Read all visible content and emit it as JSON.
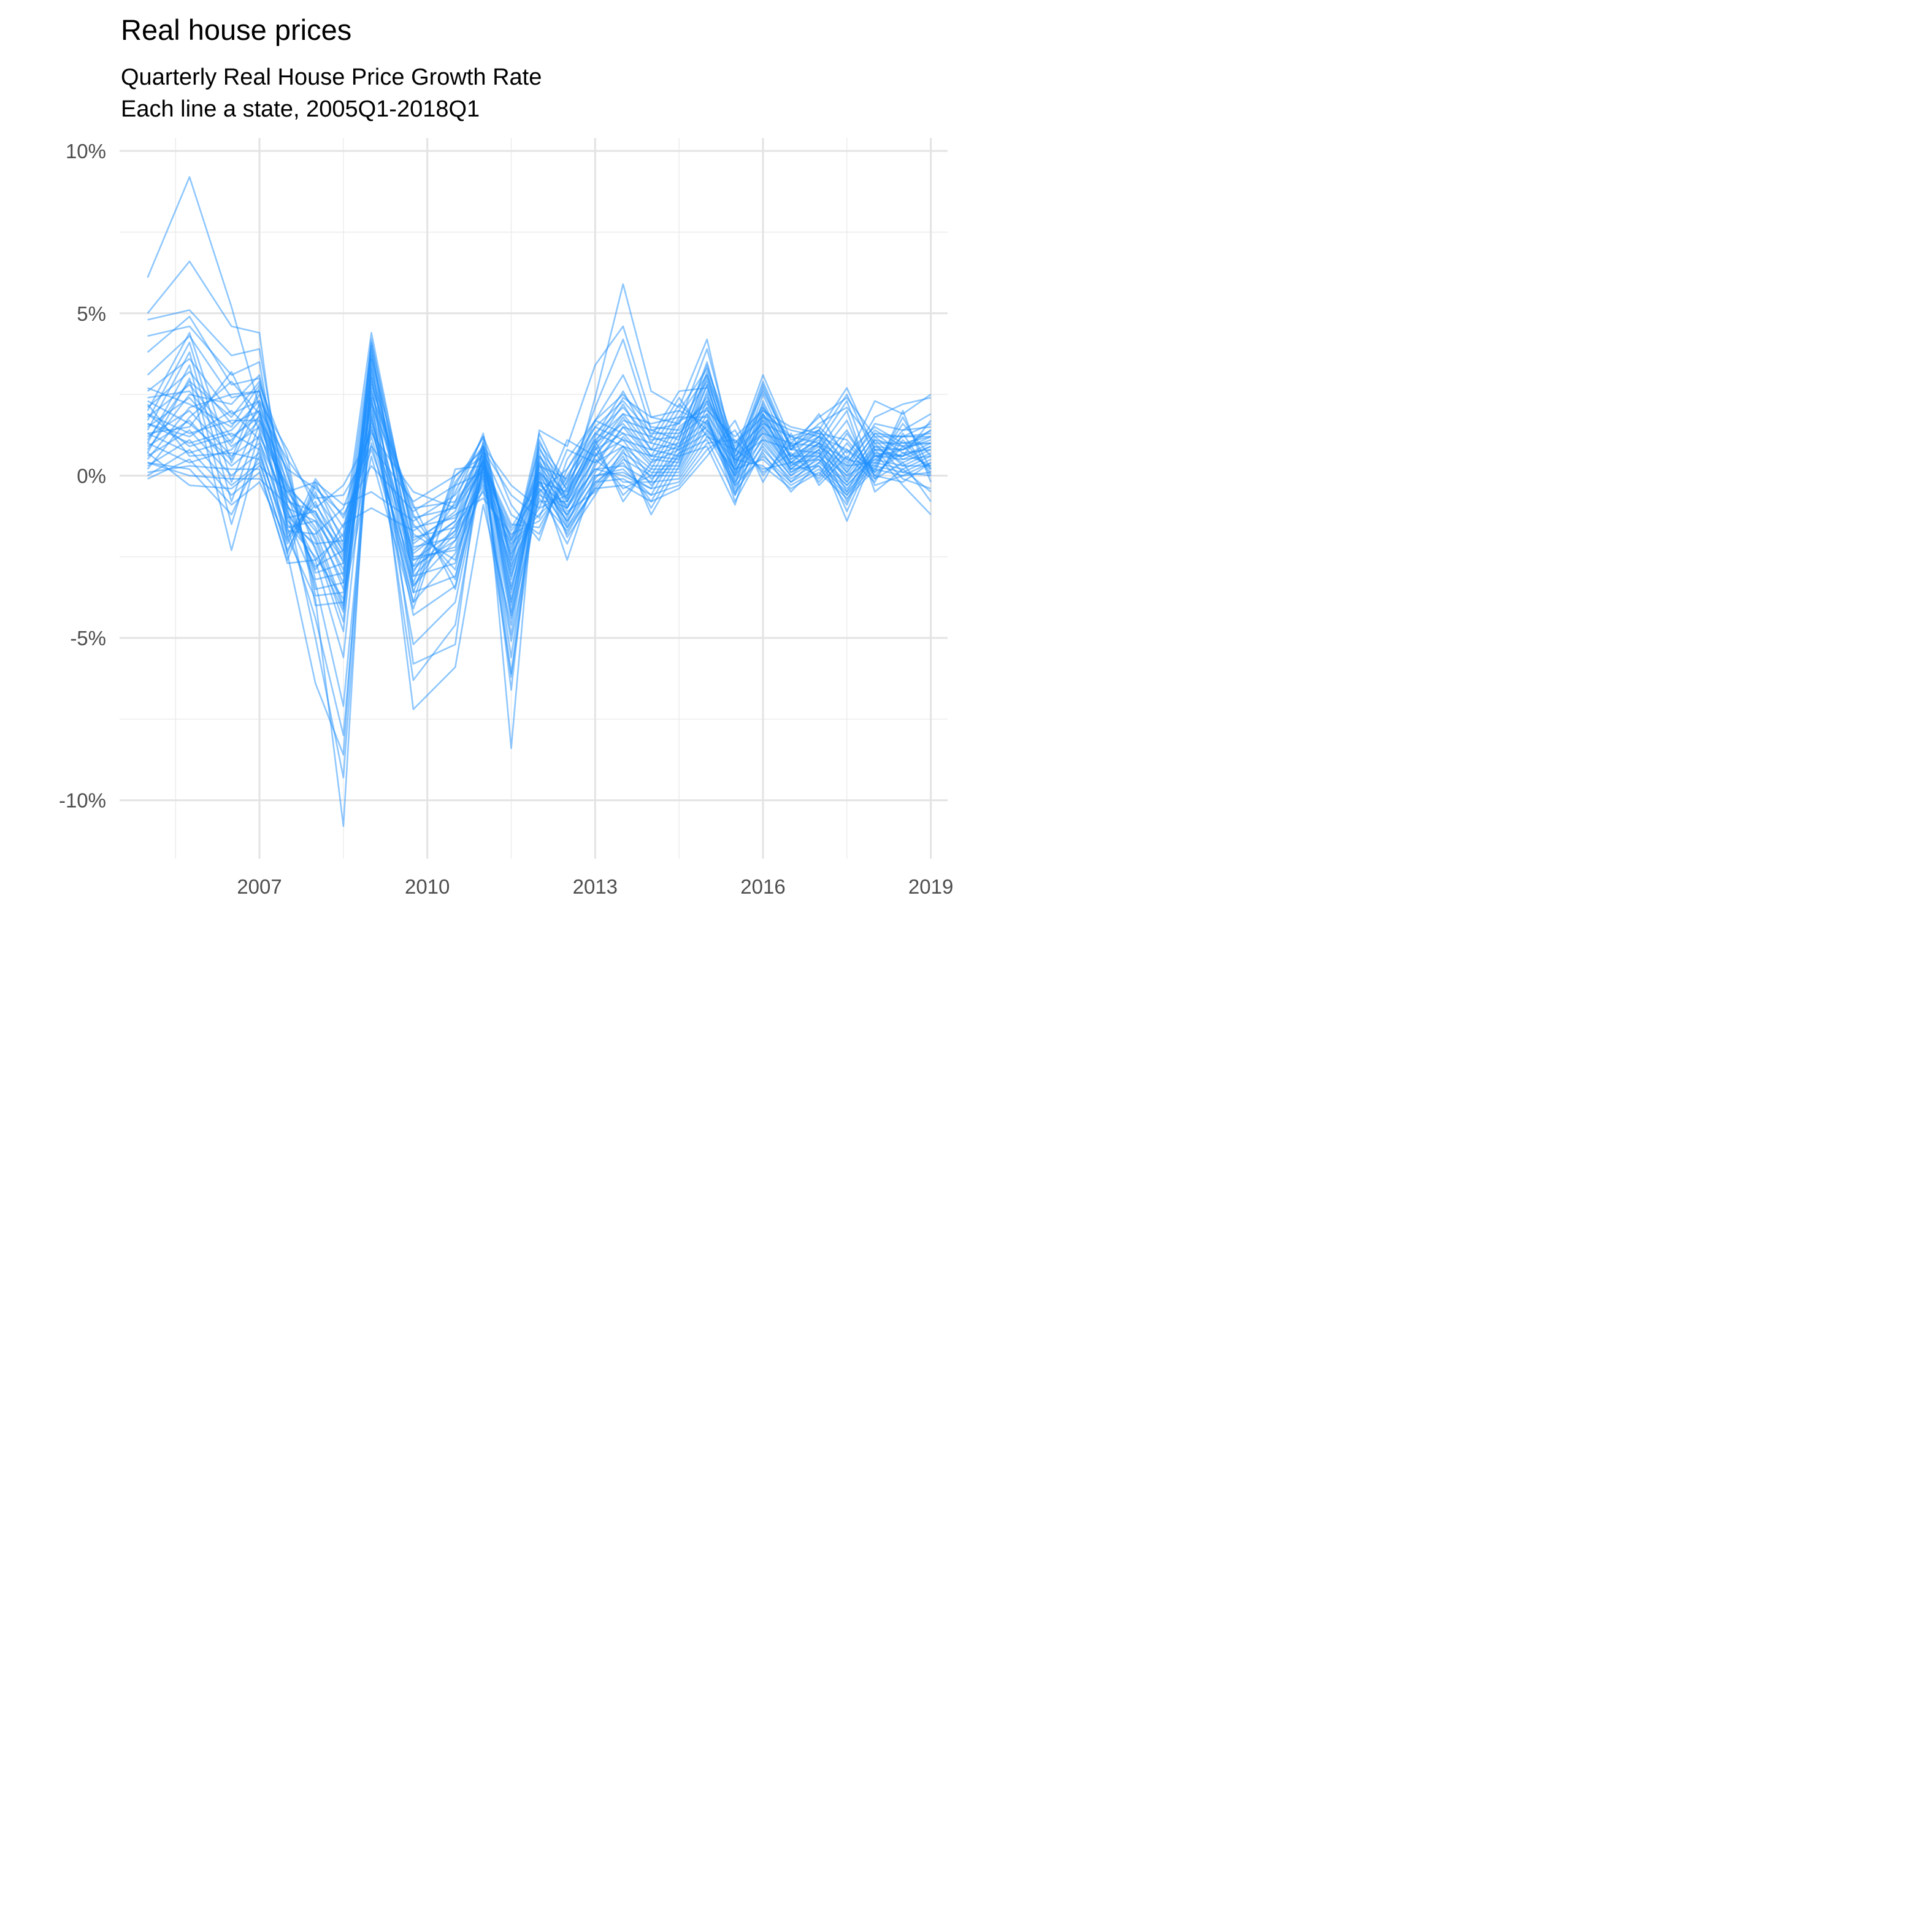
{
  "chart_data": {
    "type": "line",
    "title": "Real house prices",
    "subtitle_lines": [
      "Quarterly Real House Price Growth Rate",
      "Each line a state, 2005Q1-2018Q1"
    ],
    "xlabel": "",
    "ylabel": "",
    "x_ticks": [
      {
        "value": 2007,
        "label": "2007"
      },
      {
        "value": 2010,
        "label": "2010"
      },
      {
        "value": 2013,
        "label": "2013"
      },
      {
        "value": 2016,
        "label": "2016"
      },
      {
        "value": 2019,
        "label": "2019"
      }
    ],
    "y_ticks": [
      {
        "value": 10,
        "label": "10%"
      },
      {
        "value": 5,
        "label": "5%"
      },
      {
        "value": 0,
        "label": "0%"
      },
      {
        "value": -5,
        "label": "-5%"
      },
      {
        "value": -10,
        "label": "-10%"
      }
    ],
    "xlim": [
      2004.5,
      2019.3
    ],
    "ylim": [
      -11.8,
      10.4
    ],
    "grid": true,
    "legend": "none",
    "line_color": "#1e90ff",
    "line_opacity": 0.5,
    "x": [
      2005,
      2005.75,
      2006.5,
      2007,
      2007.5,
      2008,
      2008.5,
      2009,
      2009.75,
      2010.5,
      2011,
      2011.5,
      2012,
      2012.5,
      2013,
      2013.5,
      2014,
      2014.5,
      2015,
      2015.5,
      2016,
      2016.5,
      2017,
      2017.5,
      2018,
      2018.5,
      2019
    ],
    "series": [
      {
        "values": [
          6.1,
          9.2,
          5.2,
          2.1,
          -2.4,
          -6.4,
          -8.6,
          3.2,
          -7.2,
          -5.9,
          -0.9,
          -4.6,
          0.6,
          -0.7,
          2.4,
          5.9,
          2.6,
          2.1,
          4.2,
          0.4,
          2.8,
          0.8,
          1.9,
          0.5,
          2.3,
          1.9,
          2.5
        ]
      },
      {
        "values": [
          5.0,
          6.6,
          4.6,
          4.4,
          -1.9,
          -3.8,
          -10.8,
          3.6,
          -5.8,
          -5.2,
          1.1,
          -8.4,
          1.4,
          0.9,
          3.4,
          4.6,
          1.8,
          1.6,
          3.9,
          0.7,
          2.6,
          0.9,
          1.4,
          0.3,
          1.8,
          2.2,
          2.4
        ]
      },
      {
        "values": [
          4.8,
          5.1,
          3.7,
          3.9,
          -1.0,
          -5.0,
          -9.3,
          2.4,
          -6.3,
          -4.6,
          0.4,
          -6.6,
          1.0,
          -0.2,
          2.1,
          4.2,
          1.4,
          1.1,
          3.5,
          0.3,
          2.2,
          0.5,
          1.2,
          0.2,
          1.6,
          1.4,
          1.9
        ]
      },
      {
        "values": [
          4.3,
          4.6,
          3.1,
          3.5,
          -1.6,
          -4.4,
          -8.0,
          1.9,
          -5.2,
          -3.9,
          0.3,
          -6.1,
          0.6,
          -0.4,
          1.7,
          3.1,
          1.2,
          0.9,
          3.1,
          0.1,
          1.8,
          0.4,
          1.0,
          0.1,
          1.3,
          1.2,
          1.6
        ]
      },
      {
        "values": [
          3.8,
          4.9,
          2.8,
          3.0,
          -1.3,
          -3.3,
          -7.1,
          2.0,
          -4.3,
          -3.4,
          0.2,
          -5.6,
          0.4,
          -0.6,
          1.2,
          2.6,
          1.0,
          0.8,
          2.8,
          0.0,
          1.6,
          0.3,
          0.9,
          0.0,
          1.1,
          0.9,
          1.4
        ]
      },
      {
        "values": [
          3.1,
          4.3,
          2.4,
          2.6,
          -0.9,
          -2.6,
          -5.6,
          2.7,
          -3.6,
          -3.1,
          0.0,
          -4.9,
          0.3,
          -0.8,
          0.9,
          2.2,
          0.8,
          0.6,
          2.5,
          -0.2,
          1.4,
          0.2,
          0.8,
          -0.1,
          0.9,
          0.8,
          1.2
        ]
      },
      {
        "values": [
          2.6,
          3.6,
          1.9,
          2.3,
          -1.2,
          -2.2,
          -4.8,
          3.9,
          -3.1,
          -2.7,
          0.3,
          -4.2,
          0.1,
          -1.0,
          0.6,
          1.8,
          0.6,
          0.5,
          2.3,
          -0.4,
          1.2,
          0.1,
          0.6,
          -0.2,
          0.8,
          0.6,
          1.0
        ]
      },
      {
        "values": [
          2.1,
          3.2,
          1.6,
          2.0,
          -0.7,
          -1.9,
          -4.1,
          4.2,
          -2.6,
          -2.2,
          0.6,
          -3.8,
          0.0,
          -1.2,
          0.3,
          1.5,
          0.5,
          0.4,
          2.1,
          -0.6,
          1.0,
          0.0,
          0.5,
          -0.3,
          0.6,
          0.5,
          0.9
        ]
      },
      {
        "values": [
          1.8,
          2.8,
          1.2,
          1.8,
          -1.5,
          -2.5,
          -3.8,
          3.4,
          -2.2,
          -1.9,
          0.8,
          -3.4,
          -0.2,
          -1.4,
          0.1,
          1.2,
          0.3,
          0.3,
          1.9,
          -0.8,
          0.8,
          -0.1,
          0.4,
          -0.4,
          0.5,
          0.3,
          0.7
        ]
      },
      {
        "values": [
          1.5,
          2.4,
          0.9,
          1.5,
          -0.5,
          -1.6,
          -3.3,
          3.8,
          -1.9,
          -1.6,
          0.5,
          -3.0,
          -0.4,
          -1.6,
          -0.1,
          0.9,
          0.2,
          0.2,
          1.7,
          -0.3,
          0.6,
          -0.2,
          0.3,
          -0.5,
          0.4,
          0.2,
          0.6
        ]
      },
      {
        "values": [
          1.2,
          2.0,
          0.6,
          1.2,
          -0.3,
          -1.3,
          -2.9,
          2.9,
          -1.6,
          -1.3,
          0.9,
          -2.6,
          -0.1,
          -1.8,
          -0.3,
          0.7,
          0.1,
          0.1,
          1.6,
          0.2,
          0.5,
          -0.3,
          0.2,
          -0.6,
          0.3,
          0.1,
          0.5
        ]
      },
      {
        "values": [
          0.9,
          1.7,
          0.3,
          1.0,
          -0.8,
          -1.1,
          -2.5,
          3.1,
          -1.3,
          -1.0,
          0.2,
          -2.3,
          0.2,
          -1.1,
          -0.5,
          0.5,
          0.0,
          0.0,
          1.4,
          0.5,
          0.3,
          -0.4,
          0.1,
          -0.7,
          0.2,
          0.0,
          0.4
        ]
      },
      {
        "values": [
          0.6,
          1.4,
          0.0,
          0.7,
          -1.9,
          -0.9,
          -2.2,
          2.2,
          -1.0,
          -0.8,
          0.4,
          -2.0,
          -0.3,
          -0.9,
          0.2,
          0.3,
          -0.2,
          -0.1,
          1.2,
          0.8,
          0.2,
          0.4,
          0.0,
          1.3,
          0.1,
          0.7,
          0.3
        ]
      },
      {
        "values": [
          0.3,
          1.1,
          -0.3,
          0.4,
          -2.3,
          -0.6,
          -1.9,
          1.6,
          -3.9,
          -2.4,
          -0.4,
          -6.2,
          0.0,
          -2.6,
          0.0,
          0.1,
          -0.4,
          -0.2,
          1.0,
          1.1,
          0.1,
          0.7,
          -0.1,
          1.0,
          0.0,
          0.9,
          0.2
        ]
      },
      {
        "values": [
          0.0,
          0.8,
          -0.6,
          0.1,
          -2.6,
          -0.3,
          -1.6,
          1.2,
          -3.4,
          -2.0,
          -0.2,
          -5.1,
          -0.5,
          -2.1,
          -0.2,
          -0.1,
          -0.6,
          -0.3,
          0.8,
          1.4,
          0.0,
          1.0,
          -0.2,
          0.8,
          -0.1,
          1.1,
          0.1
        ]
      },
      {
        "values": [
          -0.1,
          0.5,
          -0.9,
          -0.2,
          -2.0,
          -0.1,
          -1.3,
          0.8,
          -2.9,
          -1.7,
          0.0,
          -4.4,
          -0.7,
          -1.7,
          -0.4,
          -0.3,
          -0.8,
          -0.4,
          0.6,
          1.7,
          -0.2,
          1.3,
          -0.3,
          0.6,
          -0.2,
          1.3,
          0.0
        ]
      },
      {
        "values": [
          0.4,
          0.2,
          -1.2,
          0.6,
          -1.7,
          -1.8,
          -1.0,
          1.4,
          -2.4,
          -1.4,
          0.7,
          -3.6,
          0.5,
          -1.5,
          0.4,
          0.9,
          -0.3,
          0.6,
          0.9,
          -0.9,
          1.9,
          0.1,
          0.7,
          -1.4,
          0.7,
          -0.3,
          -1.2
        ]
      },
      {
        "values": [
          0.7,
          3.0,
          -2.3,
          0.9,
          -1.4,
          -2.1,
          -2.0,
          2.6,
          -2.1,
          -1.1,
          1.0,
          -3.2,
          0.7,
          -1.3,
          0.6,
          1.1,
          -0.1,
          0.7,
          1.1,
          -0.6,
          2.1,
          0.3,
          0.8,
          -1.1,
          0.8,
          -0.1,
          -0.4
        ]
      },
      {
        "values": [
          1.0,
          3.4,
          -1.5,
          1.3,
          -1.1,
          -2.8,
          -2.3,
          2.4,
          -2.8,
          -0.8,
          1.3,
          -2.9,
          0.9,
          -1.0,
          0.8,
          1.3,
          0.4,
          0.8,
          1.3,
          -0.3,
          2.3,
          0.5,
          1.0,
          -0.8,
          1.0,
          0.1,
          0.0
        ]
      },
      {
        "values": [
          1.4,
          3.8,
          -0.8,
          1.6,
          -0.6,
          -3.0,
          -2.7,
          2.1,
          -3.0,
          -0.5,
          1.2,
          -2.7,
          1.1,
          -0.8,
          1.0,
          1.6,
          0.6,
          0.9,
          1.5,
          0.0,
          2.5,
          0.6,
          1.1,
          -0.5,
          1.1,
          0.3,
          0.3
        ]
      },
      {
        "values": [
          1.7,
          4.1,
          -0.2,
          1.9,
          -0.2,
          -3.2,
          -3.0,
          1.8,
          -3.3,
          -0.2,
          0.9,
          -2.5,
          1.3,
          -0.5,
          1.1,
          1.9,
          0.8,
          1.0,
          1.7,
          0.2,
          2.7,
          0.8,
          1.2,
          -0.2,
          1.2,
          0.5,
          0.6
        ]
      },
      {
        "values": [
          2.0,
          4.4,
          0.4,
          2.2,
          0.1,
          -3.5,
          -3.3,
          1.5,
          -3.6,
          0.0,
          0.6,
          -2.2,
          0.8,
          -0.3,
          1.3,
          2.1,
          1.1,
          1.2,
          1.9,
          0.5,
          2.9,
          0.9,
          1.3,
          0.1,
          1.3,
          0.7,
          0.8
        ]
      },
      {
        "values": [
          2.4,
          2.6,
          1.0,
          2.5,
          0.3,
          -3.7,
          -3.6,
          1.0,
          -3.9,
          0.2,
          0.3,
          -2.0,
          0.3,
          -0.1,
          1.5,
          2.3,
          1.3,
          1.3,
          2.1,
          0.7,
          3.1,
          1.1,
          1.4,
          0.4,
          1.4,
          0.9,
          1.0
        ]
      },
      {
        "values": [
          2.7,
          2.2,
          1.5,
          2.8,
          0.6,
          -4.0,
          -3.9,
          0.6,
          -4.1,
          -0.3,
          0.1,
          -1.7,
          -0.5,
          0.2,
          1.7,
          2.5,
          1.5,
          1.4,
          2.3,
          0.9,
          2.0,
          1.2,
          1.5,
          0.7,
          1.5,
          1.0,
          1.2
        ]
      },
      {
        "values": [
          1.1,
          2.9,
          1.8,
          2.9,
          0.0,
          -2.3,
          -4.2,
          4.1,
          -1.8,
          -2.6,
          0.5,
          -4.0,
          0.4,
          -1.9,
          -0.6,
          0.8,
          -1.2,
          0.3,
          2.6,
          -0.1,
          1.5,
          0.2,
          0.3,
          -0.9,
          0.9,
          0.4,
          0.8
        ]
      },
      {
        "values": [
          0.8,
          2.5,
          2.2,
          3.1,
          -0.4,
          -2.0,
          -4.5,
          3.6,
          -1.5,
          -2.9,
          0.8,
          -4.3,
          0.1,
          -1.6,
          -0.4,
          0.6,
          -1.0,
          0.5,
          2.8,
          0.1,
          1.7,
          0.4,
          0.5,
          -0.6,
          0.7,
          0.6,
          0.9
        ]
      },
      {
        "values": [
          0.5,
          2.1,
          2.5,
          2.6,
          -0.7,
          -1.7,
          -4.0,
          2.8,
          -1.2,
          -3.2,
          0.6,
          -3.9,
          -0.2,
          -1.4,
          -0.2,
          0.4,
          -0.8,
          0.7,
          3.0,
          0.3,
          1.9,
          0.6,
          0.6,
          -0.3,
          0.6,
          0.8,
          1.1
        ]
      },
      {
        "values": [
          0.2,
          1.8,
          2.9,
          1.9,
          -1.0,
          -1.4,
          -3.5,
          2.5,
          -0.9,
          -3.5,
          0.4,
          -3.5,
          -0.4,
          -1.2,
          0.0,
          0.2,
          -0.6,
          0.9,
          3.2,
          0.5,
          1.1,
          0.8,
          0.7,
          0.0,
          0.5,
          1.2,
          1.3
        ]
      },
      {
        "values": [
          1.3,
          1.5,
          3.2,
          1.4,
          -1.3,
          -1.1,
          -3.1,
          3.0,
          -2.5,
          -2.3,
          0.1,
          -3.1,
          -0.6,
          -1.0,
          0.2,
          0.0,
          -0.4,
          1.1,
          3.4,
          0.6,
          1.3,
          1.0,
          0.9,
          0.3,
          0.4,
          1.4,
          1.5
        ]
      },
      {
        "values": [
          1.6,
          1.2,
          2.0,
          1.1,
          -1.8,
          -0.8,
          -2.7,
          3.3,
          -2.8,
          -2.0,
          -0.1,
          -2.8,
          -0.8,
          -0.8,
          0.5,
          -0.2,
          -0.2,
          1.3,
          2.4,
          0.8,
          1.6,
          1.2,
          1.0,
          0.5,
          0.3,
          1.6,
          0.6
        ]
      },
      {
        "values": [
          1.9,
          0.9,
          1.3,
          0.8,
          -2.1,
          -0.5,
          -2.4,
          3.7,
          -3.1,
          -1.8,
          -0.3,
          -2.4,
          -1.0,
          -0.6,
          0.7,
          -0.4,
          0.0,
          1.5,
          2.2,
          1.0,
          1.8,
          1.4,
          1.2,
          0.8,
          0.2,
          1.8,
          0.2
        ]
      },
      {
        "values": [
          2.2,
          0.6,
          0.7,
          0.5,
          -2.4,
          -0.2,
          -2.1,
          4.0,
          -3.4,
          -1.5,
          -0.5,
          -2.1,
          -1.2,
          -0.4,
          0.9,
          -0.6,
          0.2,
          1.7,
          2.0,
          1.2,
          2.0,
          1.5,
          1.3,
          1.1,
          0.1,
          2.0,
          -0.2
        ]
      },
      {
        "values": [
          0.1,
          0.3,
          0.2,
          0.2,
          -2.7,
          -2.6,
          -1.8,
          4.4,
          -2.0,
          -1.2,
          -0.7,
          -1.8,
          -1.4,
          -0.2,
          1.1,
          -0.8,
          0.4,
          1.8,
          1.8,
          -0.5,
          0.7,
          -0.5,
          0.4,
          1.4,
          0.0,
          -0.2,
          0.4
        ]
      },
      {
        "values": [
          0.4,
          0.0,
          -0.1,
          -0.1,
          -0.9,
          -2.9,
          -1.5,
          -1.0,
          -1.7,
          -0.9,
          0.4,
          -1.5,
          -1.6,
          0.0,
          1.3,
          0.9,
          0.6,
          2.0,
          1.6,
          -0.2,
          0.9,
          -0.2,
          0.6,
          1.7,
          -0.3,
          0.0,
          0.1
        ]
      },
      {
        "values": [
          0.7,
          -0.3,
          -0.4,
          0.3,
          -0.5,
          -0.2,
          -0.9,
          -0.5,
          -1.4,
          -0.6,
          0.7,
          -1.2,
          -1.8,
          0.2,
          1.5,
          1.1,
          0.8,
          2.2,
          1.4,
          0.0,
          1.1,
          0.0,
          0.8,
          2.0,
          -0.5,
          0.2,
          -0.5
        ]
      },
      {
        "values": [
          1.0,
          0.4,
          0.8,
          1.7,
          0.2,
          -0.4,
          -1.2,
          0.3,
          -1.1,
          -0.3,
          1.2,
          -0.9,
          -2.0,
          0.5,
          1.7,
          1.3,
          1.0,
          2.4,
          1.2,
          0.2,
          1.3,
          0.2,
          1.0,
          2.3,
          -0.1,
          0.4,
          -0.8
        ]
      },
      {
        "values": [
          1.3,
          0.7,
          1.1,
          2.0,
          0.5,
          -0.7,
          -0.6,
          0.9,
          -0.8,
          0.0,
          0.8,
          -0.6,
          -1.3,
          0.8,
          0.4,
          1.5,
          1.2,
          2.6,
          2.7,
          0.4,
          1.5,
          0.4,
          1.2,
          2.5,
          0.6,
          0.6,
          1.7
        ]
      },
      {
        "values": [
          1.6,
          1.0,
          1.4,
          2.3,
          0.8,
          -1.0,
          -0.3,
          1.3,
          -0.5,
          -1.0,
          0.9,
          -0.3,
          -1.0,
          1.1,
          0.6,
          1.7,
          1.4,
          1.6,
          2.9,
          0.6,
          1.7,
          0.6,
          1.4,
          2.7,
          0.8,
          0.8,
          1.4
        ]
      },
      {
        "values": [
          1.9,
          1.3,
          1.7,
          1.7,
          -0.4,
          -1.2,
          -2.3,
          1.7,
          -2.3,
          -1.4,
          0.3,
          -1.6,
          -0.2,
          -0.5,
          0.8,
          1.9,
          1.6,
          1.8,
          3.1,
          0.8,
          1.9,
          0.8,
          1.6,
          2.1,
          1.0,
          1.0,
          1.0
        ]
      },
      {
        "values": [
          2.3,
          1.6,
          0.5,
          2.7,
          -1.6,
          -1.4,
          -2.6,
          2.3,
          -2.6,
          -1.7,
          0.5,
          -1.9,
          0.1,
          -0.7,
          1.0,
          2.4,
          1.8,
          2.0,
          3.3,
          1.0,
          2.1,
          1.0,
          1.8,
          2.4,
          1.2,
          1.2,
          1.2
        ]
      }
    ]
  }
}
